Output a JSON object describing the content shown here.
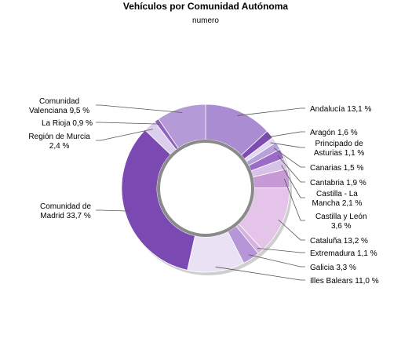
{
  "chart_data": {
    "type": "pie",
    "style": "donut",
    "title": "Vehículos por Comunidad Autónoma",
    "subtitle": "numero",
    "legend": "none",
    "slices": [
      {
        "name": "Andalucía",
        "value": 13.1,
        "label": "Andalucía 13,1 %",
        "color": "#a98cd2"
      },
      {
        "name": "Aragón",
        "value": 1.6,
        "label": "Aragón 1,6 %",
        "color": "#7c4cb3"
      },
      {
        "name": "Principado de Asturias",
        "value": 1.1,
        "label": "Principado de Asturias 1,1 %",
        "color": "#e1d7ef"
      },
      {
        "name": "Canarias",
        "value": 1.5,
        "label": "Canarias 1,5 %",
        "color": "#b6a1da"
      },
      {
        "name": "Cantabria",
        "value": 1.9,
        "label": "Cantabria 1,9 %",
        "color": "#9b6cc6"
      },
      {
        "name": "Castilla - La Mancha",
        "value": 2.1,
        "label": "Castilla - La Mancha 2,1 %",
        "color": "#d8c2e8"
      },
      {
        "name": "Castilla y León",
        "value": 3.6,
        "label": "Castilla y León 3,6 %",
        "color": "#c79ad6"
      },
      {
        "name": "Cataluña",
        "value": 13.2,
        "label": "Cataluña 13,2 %",
        "color": "#e4c4e8"
      },
      {
        "name": "Extremadura",
        "value": 1.1,
        "label": "Extremadura 1,1 %",
        "color": "#d6b2df"
      },
      {
        "name": "Galicia",
        "value": 3.3,
        "label": "Galicia 3,3 %",
        "color": "#b596d8"
      },
      {
        "name": "Illes Balears",
        "value": 11.0,
        "label": "Illes Balears 11,0 %",
        "color": "#ebe1f4"
      },
      {
        "name": "Comunidad de Madrid",
        "value": 33.7,
        "label": "Comunidad de Madrid 33,7 %",
        "color": "#7b49b2"
      },
      {
        "name": "Región de Murcia",
        "value": 2.4,
        "label": "Región de Murcia 2,4 %",
        "color": "#dccfee"
      },
      {
        "name": "La Rioja",
        "value": 0.9,
        "label": "La Rioja 0,9 %",
        "color": "#8e62bd"
      },
      {
        "name": "Comunidad Valenciana",
        "value": 9.5,
        "label": "Comunidad Valenciana 9,5 %",
        "color": "#b59ad8"
      }
    ],
    "label_lines": [
      {
        "slice": 0,
        "lines": [
          "Andalucía 13,1 %"
        ]
      },
      {
        "slice": 1,
        "lines": [
          "Aragón 1,6 %"
        ]
      },
      {
        "slice": 2,
        "lines": [
          "Principado de",
          "Asturias 1,1 %"
        ]
      },
      {
        "slice": 3,
        "lines": [
          "Canarias 1,5 %"
        ]
      },
      {
        "slice": 4,
        "lines": [
          "Cantabria 1,9 %"
        ]
      },
      {
        "slice": 5,
        "lines": [
          "Castilla - La",
          "Mancha 2,1 %"
        ]
      },
      {
        "slice": 6,
        "lines": [
          "Castilla y León",
          "3,6 %"
        ]
      },
      {
        "slice": 7,
        "lines": [
          "Cataluña 13,2 %"
        ]
      },
      {
        "slice": 8,
        "lines": [
          "Extremadura 1,1 %"
        ]
      },
      {
        "slice": 9,
        "lines": [
          "Galicia 3,3 %"
        ]
      },
      {
        "slice": 10,
        "lines": [
          "Illes Balears 11,0 %"
        ]
      },
      {
        "slice": 11,
        "lines": [
          "Comunidad de",
          "Madrid 33,7 %"
        ]
      },
      {
        "slice": 12,
        "lines": [
          "Región de Murcia",
          "2,4 %"
        ]
      },
      {
        "slice": 13,
        "lines": [
          "La Rioja 0,9 %"
        ]
      },
      {
        "slice": 14,
        "lines": [
          "Comunidad",
          "Valenciana 9,5 %"
        ]
      }
    ]
  }
}
